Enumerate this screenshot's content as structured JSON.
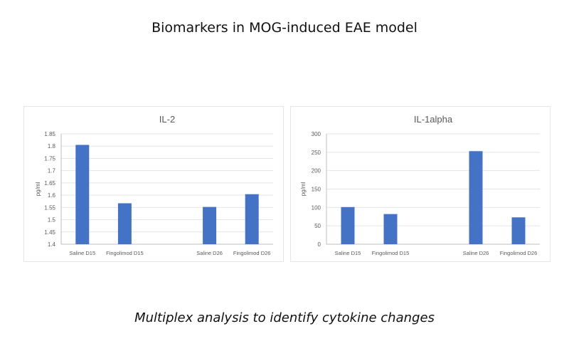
{
  "title": "Biomarkers in MOG-induced EAE model",
  "caption": "Multiplex analysis to identify cytokine changes",
  "chart_data": [
    {
      "type": "bar",
      "title": "IL-2",
      "ylabel": "pg/ml",
      "xlabel": "",
      "categories": [
        "Saline D15",
        "Fingolimod D15",
        "",
        "Saline D26",
        "Fingolimod D26"
      ],
      "values": [
        1.805,
        1.567,
        null,
        1.552,
        1.604
      ],
      "ylim": [
        1.4,
        1.85
      ],
      "yticks": [
        "1.4",
        "1.45",
        "1.5",
        "1.55",
        "1.6",
        "1.65",
        "1.7",
        "1.75",
        "1.8",
        "1.85"
      ],
      "grid": true,
      "color": "#4472c4"
    },
    {
      "type": "bar",
      "title": "IL-1alpha",
      "ylabel": "pg/ml",
      "xlabel": "",
      "categories": [
        "Saline D15",
        "Fingolimod D15",
        "",
        "Saline D26",
        "Fingolimod D26"
      ],
      "values": [
        101,
        82,
        null,
        253,
        73
      ],
      "ylim": [
        0,
        300
      ],
      "yticks": [
        "0",
        "50",
        "100",
        "150",
        "200",
        "250",
        "300"
      ],
      "grid": true,
      "color": "#4472c4"
    }
  ]
}
